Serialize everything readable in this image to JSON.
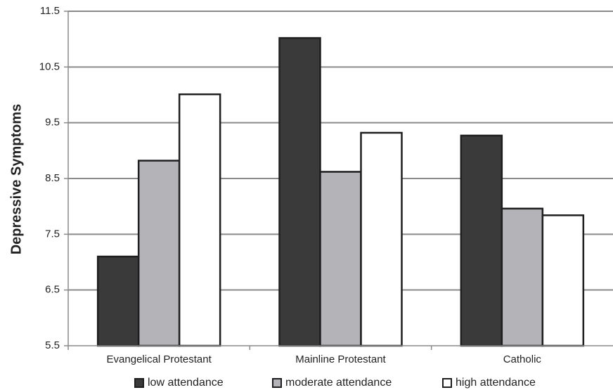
{
  "chart_data": {
    "type": "bar",
    "title": "",
    "xlabel": "",
    "ylabel": "Depressive Symptoms",
    "ylim": [
      5.5,
      11.5
    ],
    "yticks": [
      "5.5",
      "6.5",
      "7.5",
      "8.5",
      "9.5",
      "10.5",
      "11.5"
    ],
    "grid": true,
    "legend_position": "bottom",
    "categories": [
      "Evangelical Protestant",
      "Mainline Protestant",
      "Catholic"
    ],
    "series": [
      {
        "name": "low attendance",
        "color": "#3a3a3a",
        "values": [
          7.1,
          11.02,
          9.27
        ]
      },
      {
        "name": "moderate attendance",
        "color": "#b4b4b8",
        "values": [
          8.82,
          8.62,
          7.96
        ]
      },
      {
        "name": "high attendance",
        "color": "#ffffff",
        "values": [
          10.01,
          9.32,
          7.84
        ]
      }
    ]
  }
}
